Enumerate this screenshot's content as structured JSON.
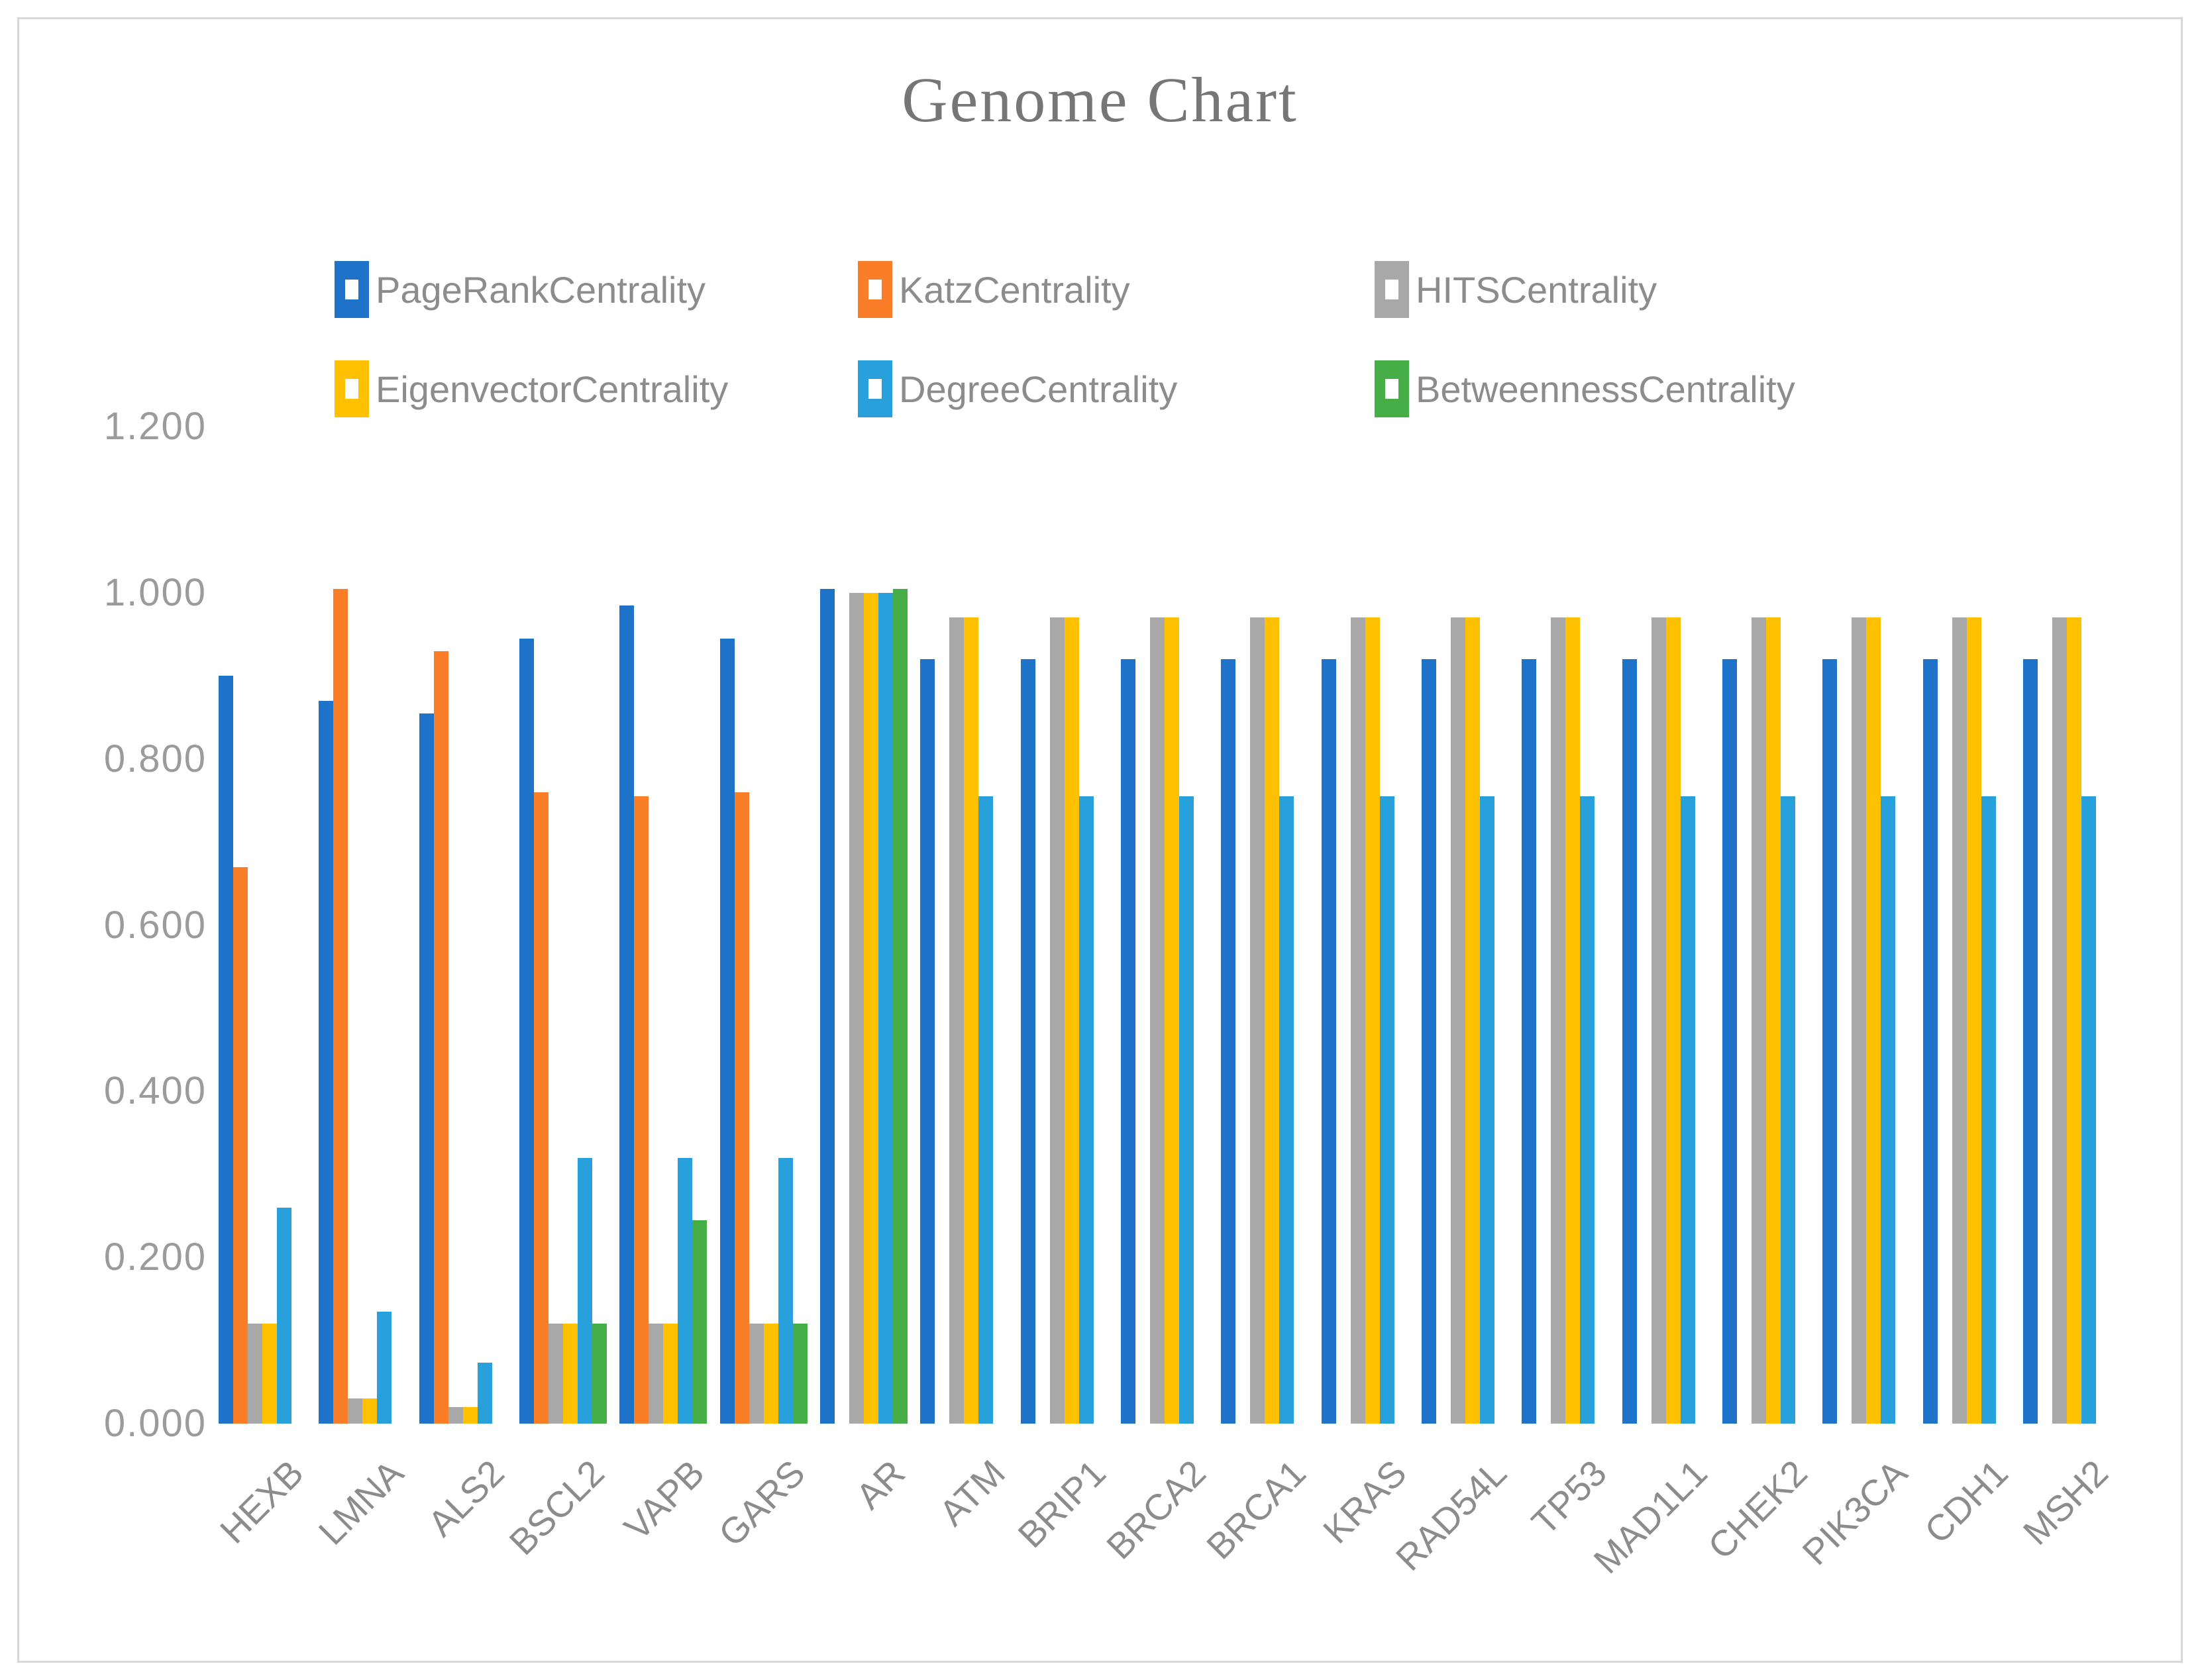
{
  "title": "Genome Chart",
  "chart_data": {
    "type": "bar",
    "title": "Genome Chart",
    "xlabel": "",
    "ylabel": "",
    "ylim": [
      0,
      1.2
    ],
    "grid": false,
    "legend_position": "top",
    "legend_rows": 2,
    "categories": [
      "HEXB",
      "LMNA",
      "ALS2",
      "BSCL2",
      "VAPB",
      "GARS",
      "AR",
      "ATM",
      "BRIP1",
      "BRCA2",
      "BRCA1",
      "KRAS",
      "RAD54L",
      "TP53",
      "MAD1L1",
      "CHEK2",
      "PIK3CA",
      "CDH1",
      "MSH2"
    ],
    "series": [
      {
        "name": "PageRankCentrality",
        "color": "#1E73C8",
        "values": [
          0.9,
          0.87,
          0.855,
          0.945,
          0.985,
          0.945,
          1.005,
          0.92,
          0.92,
          0.92,
          0.92,
          0.92,
          0.92,
          0.92,
          0.92,
          0.92,
          0.92,
          0.92,
          0.92
        ]
      },
      {
        "name": "KatzCentrality",
        "color": "#F97E27",
        "values": [
          0.67,
          1.005,
          0.93,
          0.76,
          0.755,
          0.76,
          0,
          0,
          0,
          0,
          0,
          0,
          0,
          0,
          0,
          0,
          0,
          0,
          0
        ]
      },
      {
        "name": "HITSCentrality",
        "color": "#A8A8A8",
        "values": [
          0.12,
          0.03,
          0.02,
          0.12,
          0.12,
          0.12,
          1.0,
          0.97,
          0.97,
          0.97,
          0.97,
          0.97,
          0.97,
          0.97,
          0.97,
          0.97,
          0.97,
          0.97,
          0.97
        ]
      },
      {
        "name": "EigenvectorCentrality",
        "color": "#FFC000",
        "values": [
          0.12,
          0.03,
          0.02,
          0.12,
          0.12,
          0.12,
          1.0,
          0.97,
          0.97,
          0.97,
          0.97,
          0.97,
          0.97,
          0.97,
          0.97,
          0.97,
          0.97,
          0.97,
          0.97
        ]
      },
      {
        "name": "DegreeCentrality",
        "color": "#27A0DB",
        "values": [
          0.26,
          0.135,
          0.073,
          0.32,
          0.32,
          0.32,
          1.0,
          0.755,
          0.755,
          0.755,
          0.755,
          0.755,
          0.755,
          0.755,
          0.755,
          0.755,
          0.755,
          0.755,
          0.755
        ]
      },
      {
        "name": "BetweennessCentrality",
        "color": "#47AE47",
        "values": [
          0,
          0,
          0,
          0.12,
          0.245,
          0.12,
          1.005,
          0,
          0,
          0,
          0,
          0,
          0,
          0,
          0,
          0,
          0,
          0,
          0
        ]
      }
    ],
    "y_axis": {
      "tick_labels_top_to_bottom": [
        "1.200",
        "1.000",
        "0.800",
        "0.600",
        "0.400",
        "0.200",
        "0.000"
      ],
      "min": 0.0,
      "max": 1.2,
      "step": 0.2
    }
  }
}
